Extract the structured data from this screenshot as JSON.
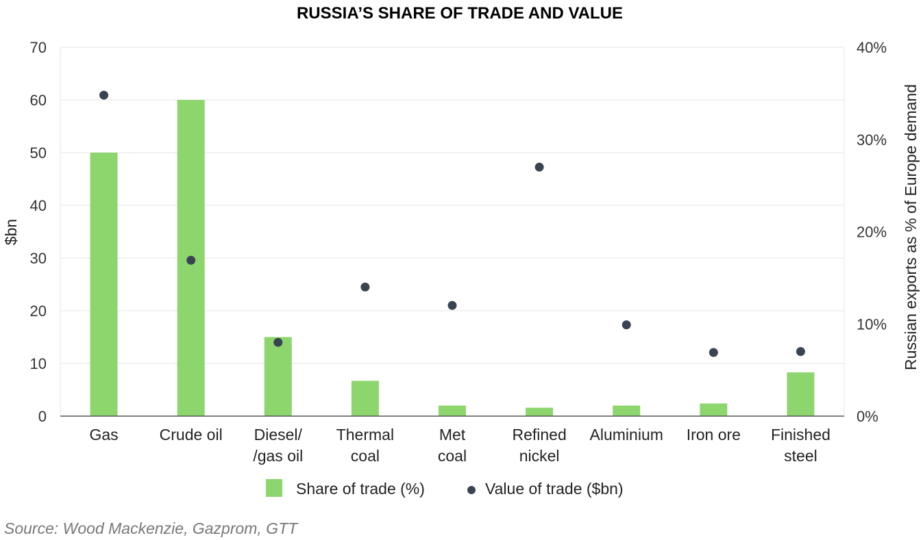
{
  "chart_data": {
    "type": "bar",
    "title": "RUSSIA’S SHARE OF TRADE AND VALUE",
    "categories": [
      [
        "Gas"
      ],
      [
        "Crude oil"
      ],
      [
        "Diesel/",
        "/gas oil"
      ],
      [
        "Thermal",
        "coal"
      ],
      [
        "Met",
        "coal"
      ],
      [
        "Refined",
        "nickel"
      ],
      [
        "Aluminium"
      ],
      [
        "Iron ore"
      ],
      [
        "Finished",
        "steel"
      ]
    ],
    "ylabel_left": "$bn",
    "ylabel_right": "Russian exports as % of Europe demand",
    "ylim_left": [
      0,
      70
    ],
    "ylim_right": [
      0,
      40
    ],
    "yticks_left": [
      "0",
      "10",
      "20",
      "30",
      "40",
      "50",
      "60",
      "70"
    ],
    "yticks_right": [
      "0%",
      "10%",
      "20%",
      "30%",
      "40%"
    ],
    "grid": true,
    "legend_position": "bottom",
    "series": [
      {
        "name": "Share of trade (%)",
        "type": "bar",
        "axis": "left",
        "color": "#8cd66d",
        "values": [
          50,
          60,
          15,
          6.7,
          2,
          1.6,
          2,
          2.4,
          8.3
        ]
      },
      {
        "name": "Value of trade ($bn)",
        "type": "scatter",
        "axis": "right",
        "color": "#3a4352",
        "values": [
          34.8,
          16.9,
          8.0,
          14.0,
          12.0,
          27.0,
          9.9,
          6.9,
          7.0
        ]
      }
    ]
  },
  "source": "Source: Wood Mackenzie, Gazprom, GTT"
}
